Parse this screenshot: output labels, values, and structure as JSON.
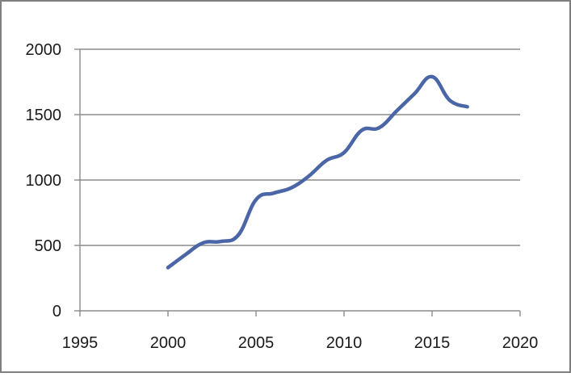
{
  "chart_data": {
    "type": "line",
    "x_ticks": [
      1995,
      2000,
      2005,
      2010,
      2015,
      2020
    ],
    "y_ticks": [
      0,
      500,
      1000,
      1500,
      2000
    ],
    "xlim": [
      1995,
      2020
    ],
    "ylim": [
      0,
      2000
    ],
    "grid": "horizontal",
    "series": [
      {
        "color": "#4a66a6",
        "x": [
          2000,
          2001,
          2002,
          2003,
          2004,
          2005,
          2006,
          2007,
          2008,
          2009,
          2010,
          2011,
          2012,
          2013,
          2014,
          2015,
          2016,
          2017
        ],
        "y": [
          330,
          430,
          520,
          530,
          580,
          850,
          900,
          940,
          1030,
          1150,
          1210,
          1380,
          1400,
          1530,
          1660,
          1790,
          1610,
          1560
        ]
      }
    ]
  }
}
